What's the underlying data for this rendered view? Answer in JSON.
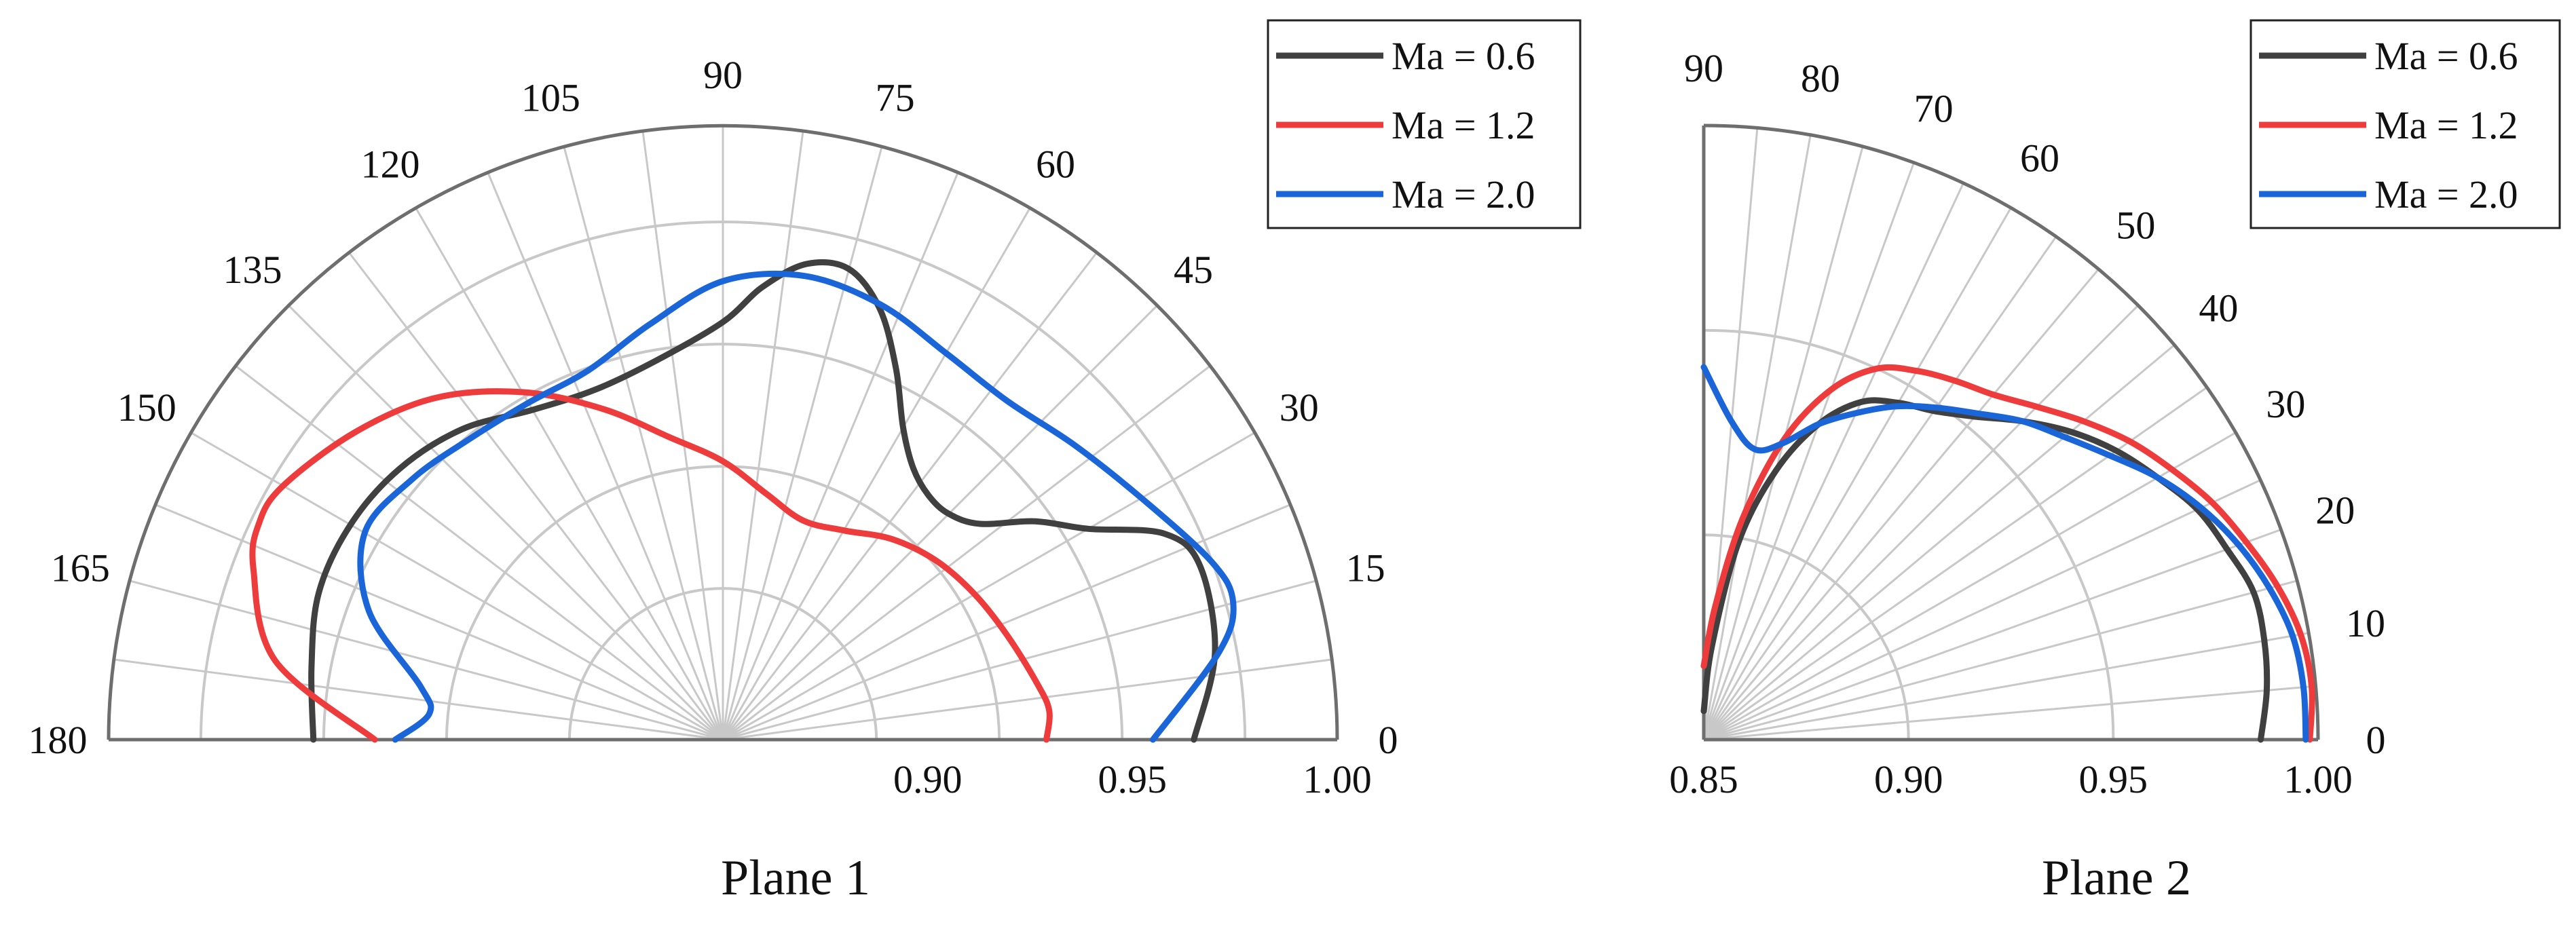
{
  "chart_data": [
    {
      "type": "polar-line",
      "caption": "Plane 1",
      "angle_range_deg": [
        0,
        180
      ],
      "angle_ticks": [
        "0",
        "15",
        "30",
        "45",
        "60",
        "75",
        "90",
        "105",
        "120",
        "135",
        "150",
        "165",
        "180"
      ],
      "radial_range": [
        0.85,
        1.0
      ],
      "radial_ticks": [
        "0.90",
        "0.95",
        "1.00"
      ],
      "grid": true,
      "legend": {
        "position": "top-right",
        "entries": [
          "Ma = 0.6",
          "Ma = 1.2",
          "Ma = 2.0"
        ]
      },
      "series": [
        {
          "name": "Ma = 0.6",
          "color": "#404040",
          "points": [
            [
              0,
              0.965
            ],
            [
              10,
              0.972
            ],
            [
              20,
              0.974
            ],
            [
              25,
              0.969
            ],
            [
              30,
              0.953
            ],
            [
              35,
              0.943
            ],
            [
              40,
              0.932
            ],
            [
              45,
              0.928
            ],
            [
              50,
              0.928
            ],
            [
              55,
              0.931
            ],
            [
              60,
              0.938
            ],
            [
              65,
              0.95
            ],
            [
              70,
              0.962
            ],
            [
              75,
              0.969
            ],
            [
              80,
              0.968
            ],
            [
              85,
              0.961
            ],
            [
              90,
              0.952
            ],
            [
              100,
              0.944
            ],
            [
              110,
              0.941
            ],
            [
              120,
              0.943
            ],
            [
              130,
              0.949
            ],
            [
              140,
              0.953
            ],
            [
              150,
              0.955
            ],
            [
              160,
              0.955
            ],
            [
              170,
              0.952
            ],
            [
              180,
              0.95
            ]
          ]
        },
        {
          "name": "Ma = 1.2",
          "color": "#ee3b3b",
          "points": [
            [
              0,
              0.929
            ],
            [
              5,
              0.93
            ],
            [
              10,
              0.928
            ],
            [
              20,
              0.924
            ],
            [
              30,
              0.921
            ],
            [
              40,
              0.918
            ],
            [
              50,
              0.914
            ],
            [
              60,
              0.909
            ],
            [
              70,
              0.907
            ],
            [
              80,
              0.911
            ],
            [
              90,
              0.918
            ],
            [
              100,
              0.925
            ],
            [
              110,
              0.936
            ],
            [
              120,
              0.948
            ],
            [
              130,
              0.959
            ],
            [
              140,
              0.967
            ],
            [
              150,
              0.974
            ],
            [
              155,
              0.975
            ],
            [
              160,
              0.972
            ],
            [
              170,
              0.961
            ],
            [
              180,
              0.935
            ]
          ]
        },
        {
          "name": "Ma = 2.0",
          "color": "#1a66d9",
          "points": [
            [
              0,
              0.955
            ],
            [
              10,
              0.973
            ],
            [
              15,
              0.979
            ],
            [
              20,
              0.977
            ],
            [
              30,
              0.968
            ],
            [
              40,
              0.962
            ],
            [
              50,
              0.958
            ],
            [
              60,
              0.959
            ],
            [
              70,
              0.963
            ],
            [
              80,
              0.965
            ],
            [
              90,
              0.962
            ],
            [
              100,
              0.953
            ],
            [
              110,
              0.946
            ],
            [
              120,
              0.945
            ],
            [
              130,
              0.946
            ],
            [
              140,
              0.949
            ],
            [
              150,
              0.951
            ],
            [
              160,
              0.942
            ],
            [
              170,
              0.925
            ],
            [
              175,
              0.922
            ],
            [
              180,
              0.93
            ]
          ]
        }
      ]
    },
    {
      "type": "polar-line",
      "caption": "Plane 2",
      "angle_range_deg": [
        0,
        90
      ],
      "angle_ticks": [
        "0",
        "10",
        "20",
        "30",
        "40",
        "50",
        "60",
        "70",
        "80",
        "90"
      ],
      "radial_range": [
        0.85,
        1.0
      ],
      "radial_ticks": [
        "0.85",
        "0.90",
        "0.95",
        "1.00"
      ],
      "grid": true,
      "legend": {
        "position": "top-right",
        "entries": [
          "Ma = 0.6",
          "Ma = 1.2",
          "Ma = 2.0"
        ]
      },
      "series": [
        {
          "name": "Ma = 0.6",
          "color": "#404040",
          "points": [
            [
              0,
              0.986
            ],
            [
              5,
              0.988
            ],
            [
              10,
              0.989
            ],
            [
              15,
              0.989
            ],
            [
              20,
              0.986
            ],
            [
              25,
              0.983
            ],
            [
              30,
              0.978
            ],
            [
              35,
              0.973
            ],
            [
              40,
              0.967
            ],
            [
              45,
              0.96
            ],
            [
              50,
              0.953
            ],
            [
              55,
              0.948
            ],
            [
              60,
              0.945
            ],
            [
              65,
              0.941
            ],
            [
              70,
              0.932
            ],
            [
              75,
              0.918
            ],
            [
              80,
              0.899
            ],
            [
              85,
              0.873
            ],
            [
              90,
              0.857
            ]
          ]
        },
        {
          "name": "Ma = 1.2",
          "color": "#ee3b3b",
          "points": [
            [
              0,
              0.998
            ],
            [
              5,
              0.999
            ],
            [
              10,
              0.998
            ],
            [
              15,
              0.995
            ],
            [
              20,
              0.991
            ],
            [
              25,
              0.987
            ],
            [
              30,
              0.982
            ],
            [
              35,
              0.977
            ],
            [
              40,
              0.971
            ],
            [
              45,
              0.965
            ],
            [
              50,
              0.96
            ],
            [
              55,
              0.957
            ],
            [
              60,
              0.954
            ],
            [
              65,
              0.95
            ],
            [
              70,
              0.941
            ],
            [
              75,
              0.926
            ],
            [
              80,
              0.905
            ],
            [
              85,
              0.883
            ],
            [
              90,
              0.868
            ]
          ]
        },
        {
          "name": "Ma = 2.0",
          "color": "#1a66d9",
          "points": [
            [
              0,
              0.997
            ],
            [
              5,
              0.997
            ],
            [
              10,
              0.996
            ],
            [
              15,
              0.993
            ],
            [
              20,
              0.989
            ],
            [
              25,
              0.984
            ],
            [
              30,
              0.978
            ],
            [
              35,
              0.971
            ],
            [
              40,
              0.965
            ],
            [
              45,
              0.96
            ],
            [
              50,
              0.954
            ],
            [
              55,
              0.949
            ],
            [
              60,
              0.944
            ],
            [
              65,
              0.938
            ],
            [
              70,
              0.932
            ],
            [
              75,
              0.925
            ],
            [
              80,
              0.922
            ],
            [
              85,
              0.928
            ],
            [
              90,
              0.941
            ]
          ]
        }
      ]
    }
  ]
}
